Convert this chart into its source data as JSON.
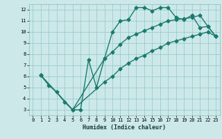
{
  "title": "",
  "xlabel": "Humidex (Indice chaleur)",
  "ylabel": "",
  "bg_color": "#cce8e8",
  "grid_color": "#99cccc",
  "line_color": "#1a7a6e",
  "marker": "D",
  "markersize": 2.5,
  "linewidth": 1.0,
  "xlim": [
    -0.5,
    23.5
  ],
  "ylim": [
    2.5,
    12.5
  ],
  "xticks": [
    0,
    1,
    2,
    3,
    4,
    5,
    6,
    7,
    8,
    9,
    10,
    11,
    12,
    13,
    14,
    15,
    16,
    17,
    18,
    19,
    20,
    21,
    22,
    23
  ],
  "yticks": [
    3,
    4,
    5,
    6,
    7,
    8,
    9,
    10,
    11,
    12
  ],
  "line1_x": [
    1,
    2,
    3,
    4,
    5,
    6,
    7,
    8,
    9,
    10,
    11,
    12,
    13,
    14,
    15,
    16,
    17,
    18,
    19,
    20,
    21,
    22,
    23
  ],
  "line1_y": [
    6.1,
    5.2,
    4.6,
    3.7,
    3.0,
    3.0,
    7.5,
    5.0,
    7.6,
    10.0,
    11.0,
    11.1,
    12.2,
    12.2,
    11.9,
    12.2,
    12.2,
    11.3,
    11.1,
    11.5,
    10.4,
    10.5,
    9.6
  ],
  "line2_x": [
    1,
    5,
    9,
    10,
    11,
    12,
    13,
    14,
    15,
    16,
    17,
    18,
    19,
    20,
    21,
    22,
    23
  ],
  "line2_y": [
    6.1,
    3.0,
    7.6,
    8.2,
    8.9,
    9.5,
    9.8,
    10.1,
    10.4,
    10.7,
    11.0,
    11.1,
    11.2,
    11.3,
    11.5,
    10.5,
    9.6
  ],
  "line3_x": [
    1,
    5,
    9,
    10,
    11,
    12,
    13,
    14,
    15,
    16,
    17,
    18,
    19,
    20,
    21,
    22,
    23
  ],
  "line3_y": [
    6.1,
    3.0,
    5.5,
    6.0,
    6.7,
    7.2,
    7.6,
    7.9,
    8.3,
    8.6,
    9.0,
    9.2,
    9.4,
    9.6,
    9.8,
    10.0,
    9.6
  ]
}
